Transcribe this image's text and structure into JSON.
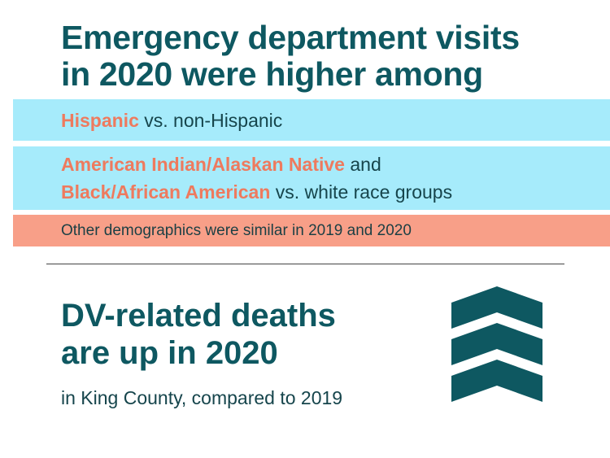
{
  "headline": {
    "line1": "Emergency department visits",
    "line2": "in 2020 were higher among"
  },
  "band1": {
    "highlight": "Hispanic",
    "rest": " vs. non-Hispanic"
  },
  "band2": {
    "highlight1": "American Indian/Alaskan Native",
    "rest1": " and",
    "highlight2": "Black/African American",
    "rest2": " vs. white race groups"
  },
  "note": "Other demographics were similar in 2019 and 2020",
  "dv": {
    "title_line1": "DV-related deaths",
    "title_line2": "are up in 2020",
    "subtitle": "in King County, compared to 2019"
  },
  "icons": {
    "up_chevrons": "triple-chevron-up-icon"
  },
  "colors": {
    "teal": "#0e5861",
    "band_blue": "#a6ebfb",
    "salmon_band": "#f89f88",
    "highlight_orange": "#ee7a5e"
  }
}
